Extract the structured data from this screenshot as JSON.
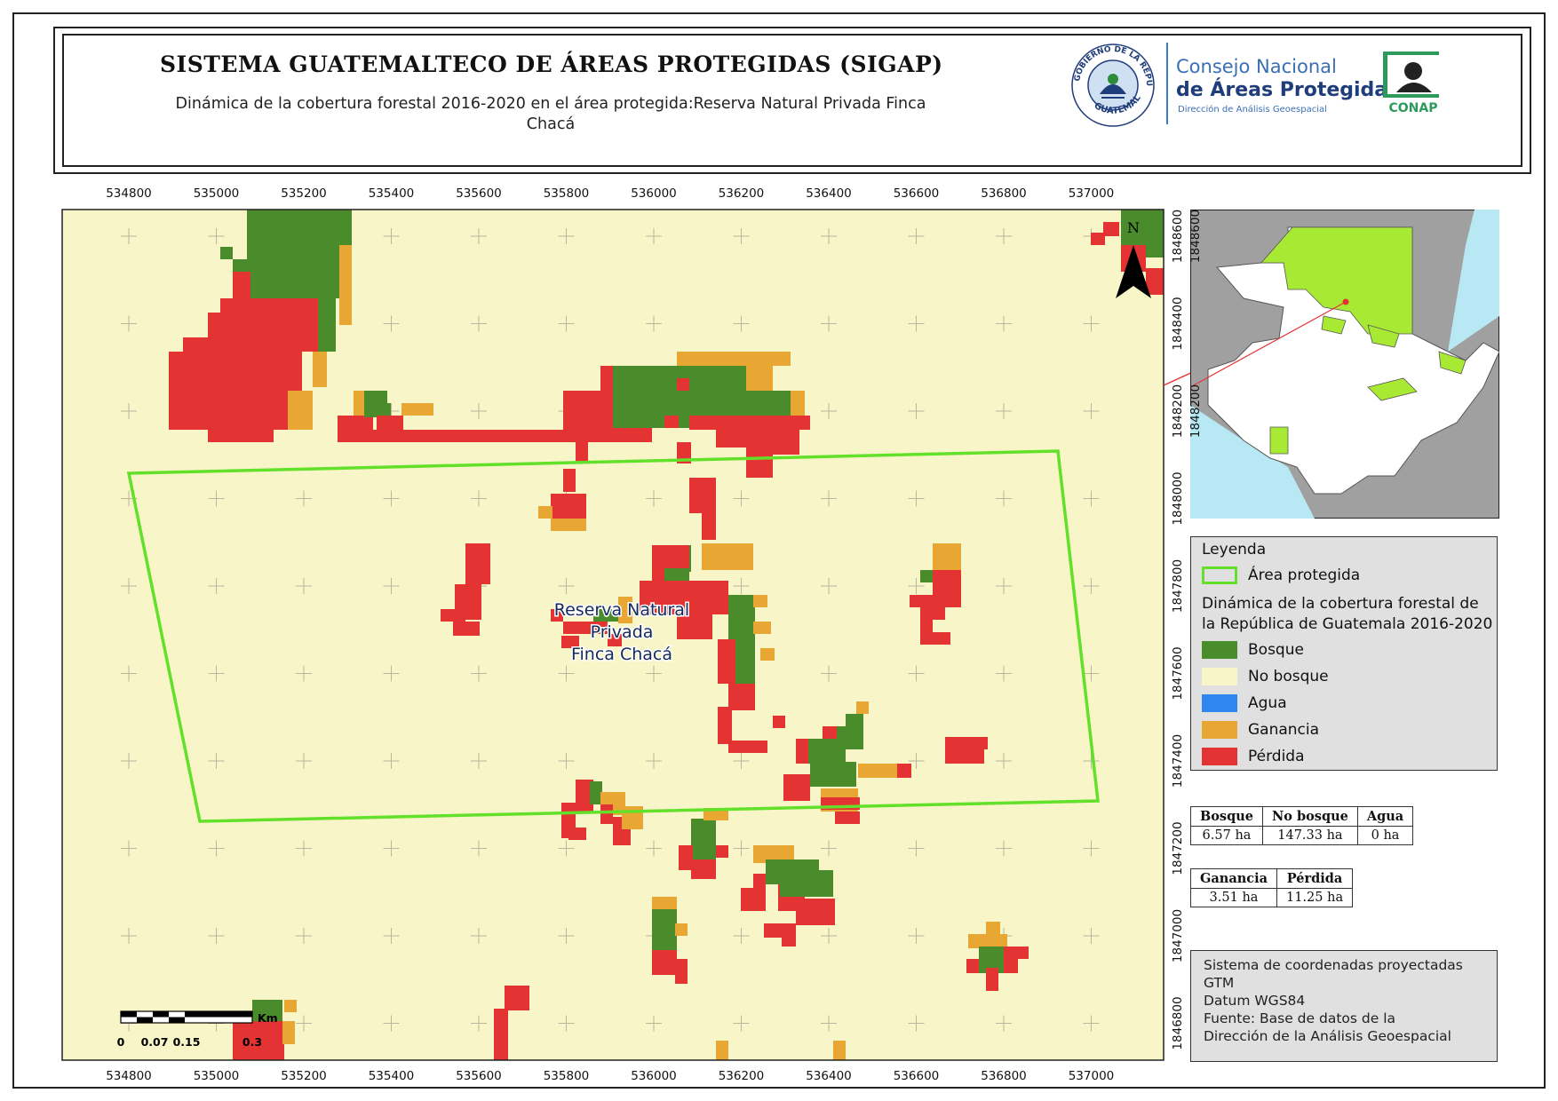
{
  "header": {
    "title": "SISTEMA GUATEMALTECO DE ÁREAS PROTEGIDAS  (SIGAP)",
    "subtitle_line1": "Dinámica de la cobertura forestal 2016-2020 en el área protegida:Reserva Natural Privada Finca",
    "subtitle_line2": "Chacá"
  },
  "logos": {
    "seal_text_top": "GOBIERNO DE LA REPÚBLICA",
    "seal_text_bottom": "GUATEMALA",
    "conap_line1": "Consejo Nacional",
    "conap_line2": "de Áreas Protegidas",
    "conap_line3": "Dirección de Análisis Geoespacial",
    "conap_acronym": "CONAP"
  },
  "map": {
    "x_ticks": [
      "534800",
      "535000",
      "535200",
      "535400",
      "535600",
      "535800",
      "536000",
      "536200",
      "536400",
      "536600",
      "536800",
      "537000"
    ],
    "y_ticks": [
      "1848600",
      "1848400",
      "1848200",
      "1848000",
      "1847800",
      "1847600",
      "1847400",
      "1847200",
      "1847000",
      "1846800"
    ],
    "area_label_line1": "Reserva Natural",
    "area_label_line2": "Privada",
    "area_label_line3": "Finca Chacá",
    "north_label": "N",
    "scale_unit": "Km",
    "scale_values": [
      "0",
      "0.07",
      "0.15",
      "0.3"
    ]
  },
  "legend": {
    "title": "Leyenda",
    "area_label": "Área protegida",
    "description": "Dinámica de la cobertura forestal de la República de Guatemala 2016-2020",
    "items": [
      {
        "label": "Bosque",
        "color": "#4a8b2c"
      },
      {
        "label": "No bosque",
        "color": "#f8f6c8"
      },
      {
        "label": "Agua",
        "color": "#2f86f0"
      },
      {
        "label": "Ganancia",
        "color": "#e8a733"
      },
      {
        "label": "Pérdida",
        "color": "#e43333"
      }
    ],
    "area_color": "#63e02a"
  },
  "stats_table1": {
    "headers": [
      "Bosque",
      "No bosque",
      "Agua"
    ],
    "values": [
      "6.57 ha",
      "147.33 ha",
      "0 ha"
    ]
  },
  "stats_table2": {
    "headers": [
      "Ganancia",
      "Pérdida"
    ],
    "values": [
      "3.51 ha",
      "11.25 ha"
    ]
  },
  "coordinates": {
    "line1": "Sistema de coordenadas proyectadas",
    "line2": "GTM",
    "line3": "Datum WGS84",
    "line4": "Fuente: Base de datos de la",
    "line5": "Dirección de la Análisis Geoespacial"
  }
}
